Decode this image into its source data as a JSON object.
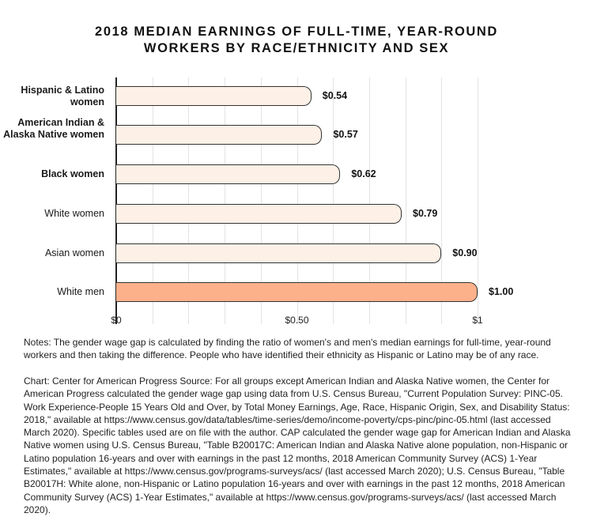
{
  "title_line1": "2018 MEDIAN EARNINGS OF FULL-TIME, YEAR-ROUND",
  "title_line2": "WORKERS BY RACE/ETHNICITY AND SEX",
  "bars": [
    {
      "label": "Hispanic & Latino women",
      "value": 0.54,
      "value_label": "$0.54",
      "bold": true,
      "color": "#fdf0e6"
    },
    {
      "label": "American Indian & Alaska Native women",
      "value": 0.57,
      "value_label": "$0.57",
      "bold": true,
      "color": "#fdf0e6"
    },
    {
      "label": "Black women",
      "value": 0.62,
      "value_label": "$0.62",
      "bold": true,
      "color": "#fdf0e6"
    },
    {
      "label": "White women",
      "value": 0.79,
      "value_label": "$0.79",
      "bold": false,
      "color": "#fdf0e6"
    },
    {
      "label": "Asian women",
      "value": 0.9,
      "value_label": "$0.90",
      "bold": false,
      "color": "#fdf0e6"
    },
    {
      "label": "White men",
      "value": 1.0,
      "value_label": "$1.00",
      "bold": false,
      "color": "#fdb18b"
    }
  ],
  "x_ticks": [
    "$0",
    "$0.50",
    "$1"
  ],
  "notes": "Notes: The gender wage gap is calculated by finding the ratio of women's and men's median earnings for full-time, year-round workers and then taking the difference. People who have identified their ethnicity as Hispanic or Latino may be of any race.",
  "source": "Chart: Center for American Progress Source: For all groups except American Indian and Alaska Native women, the Center for American Progress calculated the gender wage gap using data from U.S. Census Bureau, \"Current Population Survey: PINC-05. Work Experience-People 15 Years Old and Over, by Total Money Earnings, Age, Race, Hispanic Origin, Sex, and Disability Status: 2018,\" available at https://www.census.gov/data/tables/time-series/demo/income-poverty/cps-pinc/pinc-05.html (last accessed March 2020). Specific tables used are on file with the author. CAP calculated the gender wage gap for American Indian and Alaska Native women using U.S. Census Bureau, \"Table B20017C: American Indian and Alaska Native alone population, non-Hispanic or Latino population 16-years and over with earnings in the past 12 months, 2018 American Community Survey (ACS) 1-Year Estimates,\" available at https://www.census.gov/programs-surveys/acs/ (last accessed March 2020); U.S. Census Bureau, \"Table B20017H: White alone, non-Hispanic or Latino population 16-years and over with earnings in the past 12 months, 2018 American Community Survey (ACS) 1-Year Estimates,\" available at https://www.census.gov/programs-surveys/acs/ (last accessed March 2020).",
  "chart_data": {
    "type": "bar",
    "orientation": "horizontal",
    "title": "2018 Median Earnings of Full-Time, Year-Round Workers by Race/Ethnicity and Sex",
    "categories": [
      "Hispanic & Latino women",
      "American Indian & Alaska Native women",
      "Black women",
      "White women",
      "Asian women",
      "White men"
    ],
    "values": [
      0.54,
      0.57,
      0.62,
      0.79,
      0.9,
      1.0
    ],
    "data_labels": [
      "$0.54",
      "$0.57",
      "$0.62",
      "$0.79",
      "$0.90",
      "$1.00"
    ],
    "xlabel": "",
    "ylabel": "",
    "xlim": [
      0,
      1
    ],
    "x_tick_labels": [
      "$0",
      "$0.50",
      "$1"
    ],
    "grid": true,
    "highlight_color": "#fdb18b",
    "base_color": "#fdf0e6"
  }
}
